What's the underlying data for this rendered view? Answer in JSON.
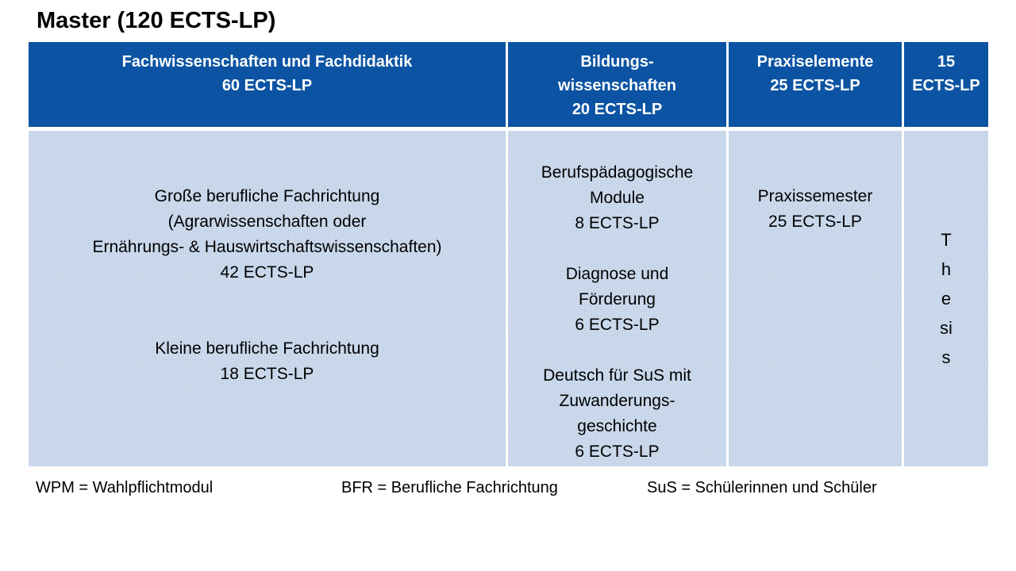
{
  "slide": {
    "title": "Master (120 ECTS-LP)"
  },
  "table": {
    "headers": [
      {
        "label": "Fachwissenschaften und Fachdidaktik\n60 ECTS-LP"
      },
      {
        "label": "Bildungs-\nwissenschaften\n20 ECTS-LP"
      },
      {
        "label": "Praxiselemente\n25 ECTS-LP"
      },
      {
        "label": "15\nECTS-LP"
      }
    ],
    "body": {
      "col1": {
        "block1": "Große berufliche Fachrichtung\n(Agrarwissenschaften oder\nErnährungs- & Hauswirtschaftswissenschaften)\n42 ECTS-LP",
        "block2": "Kleine berufliche Fachrichtung\n18 ECTS-LP"
      },
      "col2": {
        "block1": "Berufspädagogische\nModule\n8 ECTS-LP",
        "block2": "Diagnose und\nFörderung\n6 ECTS-LP",
        "block3": "Deutsch für SuS mit\nZuwanderungs-\ngeschichte\n6 ECTS-LP"
      },
      "col3": {
        "block1": "Praxissemester\n25 ECTS-LP"
      },
      "col4": {
        "vertical_label": "Thesis"
      }
    }
  },
  "legend": {
    "items": [
      "WPM = Wahlpflichtmodul",
      "BFR = Berufliche Fachrichtung",
      "SuS = Schülerinnen und Schüler"
    ]
  },
  "colors": {
    "header_background": "#0C54A3",
    "body_background": "#C6D5E9",
    "header_text": "#FFFFFF",
    "body_text": "#000000"
  }
}
